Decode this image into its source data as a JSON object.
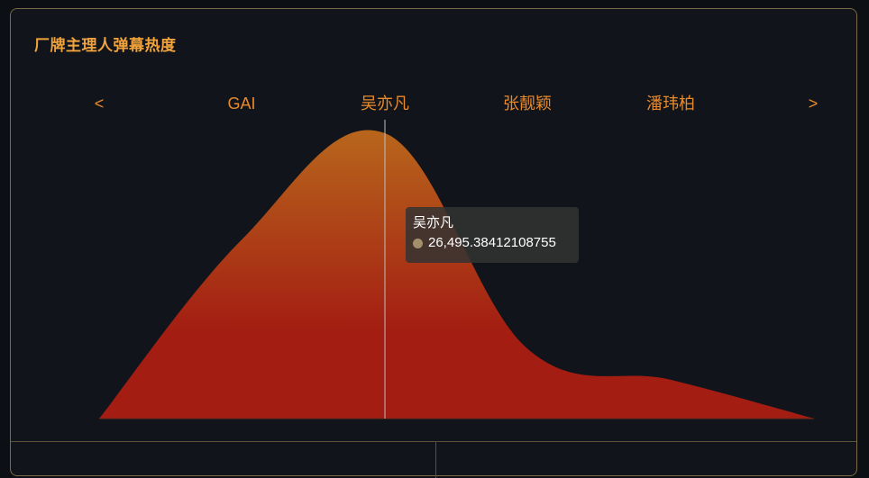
{
  "panel": {
    "title": "厂牌主理人弹幕热度"
  },
  "nav": {
    "prev_label": "<",
    "next_label": ">"
  },
  "chart_data": {
    "type": "area",
    "categories": [
      "GAI",
      "吴亦凡",
      "张靓颖",
      "潘玮柏"
    ],
    "series": [
      {
        "values": [
          16600,
          26495.38412108755,
          6500,
          3600
        ]
      }
    ],
    "ylim": [
      0,
      28000
    ],
    "grid": false,
    "legend": "none",
    "highlighted_category": "吴亦凡",
    "colors": {
      "area_top": "#b8661c",
      "area_bottom": "#a31d12",
      "axis_label": "#e88a2c",
      "pointer_line": "#bfbfbf"
    }
  },
  "tooltip": {
    "title": "吴亦凡",
    "value": "26,495.38412108755",
    "marker_color": "#a3906a"
  }
}
